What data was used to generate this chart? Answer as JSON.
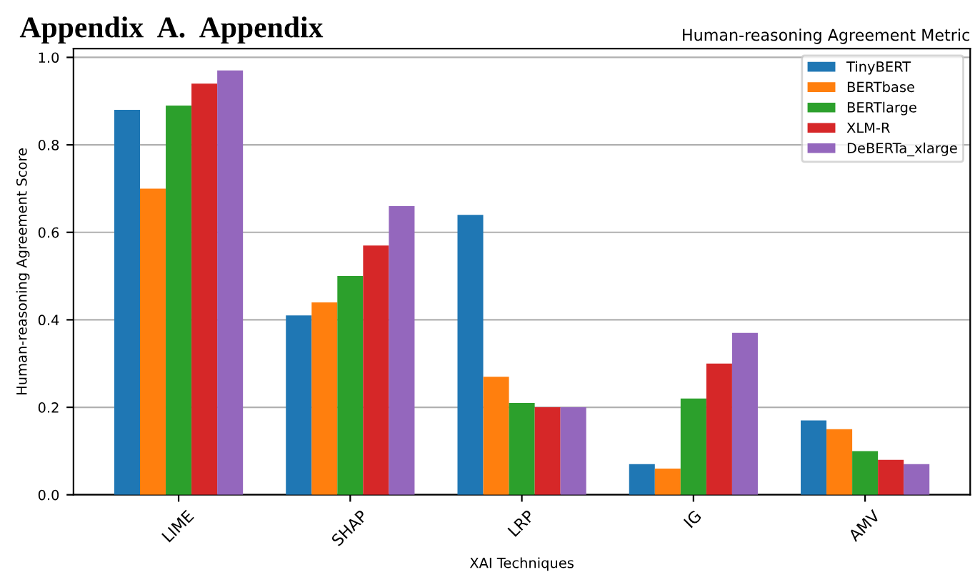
{
  "chart_data": {
    "type": "bar",
    "title": "Human-reasoning Agreement Metric",
    "xlabel": "XAI Techniques",
    "ylabel": "Human-reasoning Agreement Score",
    "annotations": [
      "Appendix  A.  Appendix"
    ],
    "categories": [
      "LIME",
      "SHAP",
      "LRP",
      "IG",
      "AMV"
    ],
    "series": [
      {
        "name": "TinyBERT",
        "color": "#1f77b4",
        "values": [
          0.88,
          0.41,
          0.64,
          0.07,
          0.17
        ]
      },
      {
        "name": "BERTbase",
        "color": "#ff7f0e",
        "values": [
          0.7,
          0.44,
          0.27,
          0.06,
          0.15
        ]
      },
      {
        "name": "BERTlarge",
        "color": "#2ca02c",
        "values": [
          0.89,
          0.5,
          0.21,
          0.22,
          0.1
        ]
      },
      {
        "name": "XLM-R",
        "color": "#d62728",
        "values": [
          0.94,
          0.57,
          0.2,
          0.3,
          0.08
        ]
      },
      {
        "name": "DeBERTa_xlarge",
        "color": "#9467bd",
        "values": [
          0.97,
          0.66,
          0.2,
          0.37,
          0.07
        ]
      }
    ],
    "ylim": [
      0,
      1.02
    ],
    "yticks": [
      {
        "value": 0,
        "label": "0.0"
      },
      0.2,
      0.4,
      0.6,
      0.8,
      {
        "value": 1,
        "label": "1.0"
      }
    ],
    "grid": "y",
    "legend": "top right"
  }
}
